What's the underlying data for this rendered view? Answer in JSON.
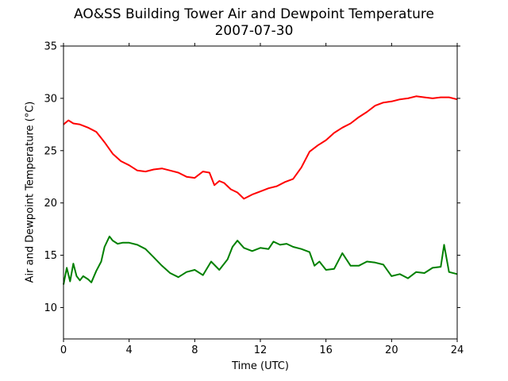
{
  "chart_data": {
    "type": "line",
    "title": "AO&SS Building Tower Air and Dewpoint Temperature",
    "subtitle": "2007-07-30",
    "xlabel": "Time (UTC)",
    "ylabel": "Air and Dewpoint Temperature (°C)",
    "xlim": [
      0,
      24
    ],
    "ylim": [
      7,
      35
    ],
    "xticks": [
      0,
      4,
      8,
      12,
      16,
      20,
      24
    ],
    "yticks": [
      10,
      15,
      20,
      25,
      30,
      35
    ],
    "grid": false,
    "legend": "none",
    "series": [
      {
        "color": "#ff0000",
        "x": [
          0,
          0.3,
          0.6,
          1,
          1.5,
          2,
          2.5,
          3,
          3.5,
          4,
          4.5,
          5,
          5.5,
          6,
          6.5,
          7,
          7.5,
          8,
          8.5,
          8.9,
          9.2,
          9.5,
          9.8,
          10.2,
          10.6,
          11,
          11.5,
          12,
          12.5,
          13,
          13.5,
          14,
          14.5,
          15,
          15.5,
          16,
          16.5,
          17,
          17.5,
          18,
          18.5,
          19,
          19.5,
          20,
          20.5,
          21,
          21.5,
          22,
          22.5,
          23,
          23.5,
          24
        ],
        "y": [
          27.5,
          27.9,
          27.6,
          27.5,
          27.2,
          26.8,
          25.8,
          24.7,
          24.0,
          23.6,
          23.1,
          23.0,
          23.2,
          23.3,
          23.1,
          22.9,
          22.5,
          22.4,
          23.0,
          22.9,
          21.7,
          22.1,
          21.9,
          21.3,
          21.0,
          20.4,
          20.8,
          21.1,
          21.4,
          21.6,
          22.0,
          22.3,
          23.4,
          24.9,
          25.5,
          26.0,
          26.7,
          27.2,
          27.6,
          28.2,
          28.7,
          29.3,
          29.6,
          29.7,
          29.9,
          30.0,
          30.2,
          30.1,
          30.0,
          30.1,
          30.1,
          29.9
        ]
      },
      {
        "color": "#008000",
        "x": [
          0,
          0.2,
          0.4,
          0.6,
          0.8,
          1,
          1.2,
          1.5,
          1.7,
          2,
          2.3,
          2.5,
          2.8,
          3,
          3.3,
          3.6,
          4,
          4.5,
          5,
          5.5,
          6,
          6.5,
          7,
          7.5,
          8,
          8.5,
          9,
          9.5,
          10,
          10.3,
          10.6,
          11,
          11.5,
          12,
          12.5,
          12.8,
          13.2,
          13.6,
          14,
          14.5,
          15,
          15.3,
          15.6,
          16,
          16.5,
          17,
          17.5,
          18,
          18.5,
          19,
          19.5,
          20,
          20.5,
          21,
          21.5,
          22,
          22.5,
          23,
          23.2,
          23.5,
          24
        ],
        "y": [
          12.2,
          13.8,
          12.5,
          14.2,
          13.0,
          12.6,
          13.0,
          12.7,
          12.4,
          13.5,
          14.4,
          15.8,
          16.8,
          16.4,
          16.1,
          16.2,
          16.2,
          16.0,
          15.6,
          14.8,
          14.0,
          13.3,
          12.9,
          13.4,
          13.6,
          13.1,
          14.4,
          13.6,
          14.6,
          15.8,
          16.4,
          15.7,
          15.4,
          15.7,
          15.6,
          16.3,
          16.0,
          16.1,
          15.8,
          15.6,
          15.3,
          14.0,
          14.4,
          13.6,
          13.7,
          15.2,
          14.0,
          14.0,
          14.4,
          14.3,
          14.1,
          13.0,
          13.2,
          12.8,
          13.4,
          13.3,
          13.8,
          13.9,
          16.0,
          13.4,
          13.2
        ]
      }
    ]
  }
}
